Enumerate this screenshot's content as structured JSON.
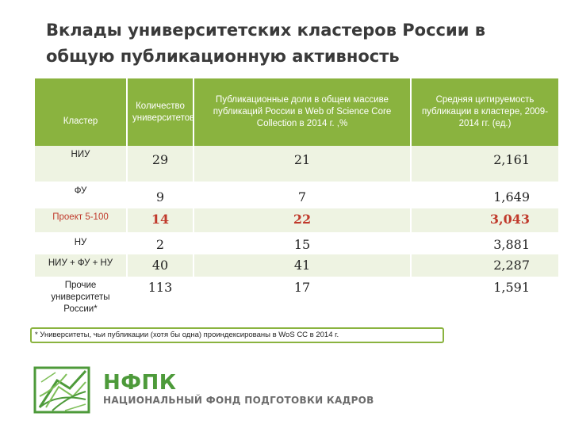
{
  "title": "Вклады университетских кластеров России в общую публикационную активность",
  "table": {
    "headers": [
      "Кластер",
      "Количество университетов",
      "Публикационные доли в общем массиве публикаций России в Web of Science Core Collection в 2014 г. ,%",
      "Средняя цитируемость публикации в кластере, 2009-2014 гг. (ед.)"
    ],
    "rows": [
      {
        "cluster": "НИУ",
        "count": "29",
        "share": "21",
        "citation": "2,161"
      },
      {
        "cluster": "ФУ",
        "count": "9",
        "share": "7",
        "citation": "1,649"
      },
      {
        "cluster": "Проект 5-100",
        "count": "14",
        "share": "22",
        "citation": "3,043"
      },
      {
        "cluster": "НУ",
        "count": "2",
        "share": "15",
        "citation": "3,881"
      },
      {
        "cluster": "НИУ + ФУ + НУ",
        "count": "40",
        "share": "41",
        "citation": "2,287"
      },
      {
        "cluster": "Прочие университеты России*",
        "count": "113",
        "share": "17",
        "citation": "1,591"
      }
    ]
  },
  "footnote": "* Университеты, чьи публикации (хотя бы одна) проиндексированы в WoS CC в 2014 г.",
  "brand": {
    "name": "НФПК",
    "subtitle": "НАЦИОНАЛЬНЫЙ ФОНД ПОДГОТОВКИ КАДРОВ",
    "colors": {
      "accent": "#8ab33f",
      "brand_green": "#4d9a3a",
      "highlight_red": "#c0392b"
    }
  }
}
